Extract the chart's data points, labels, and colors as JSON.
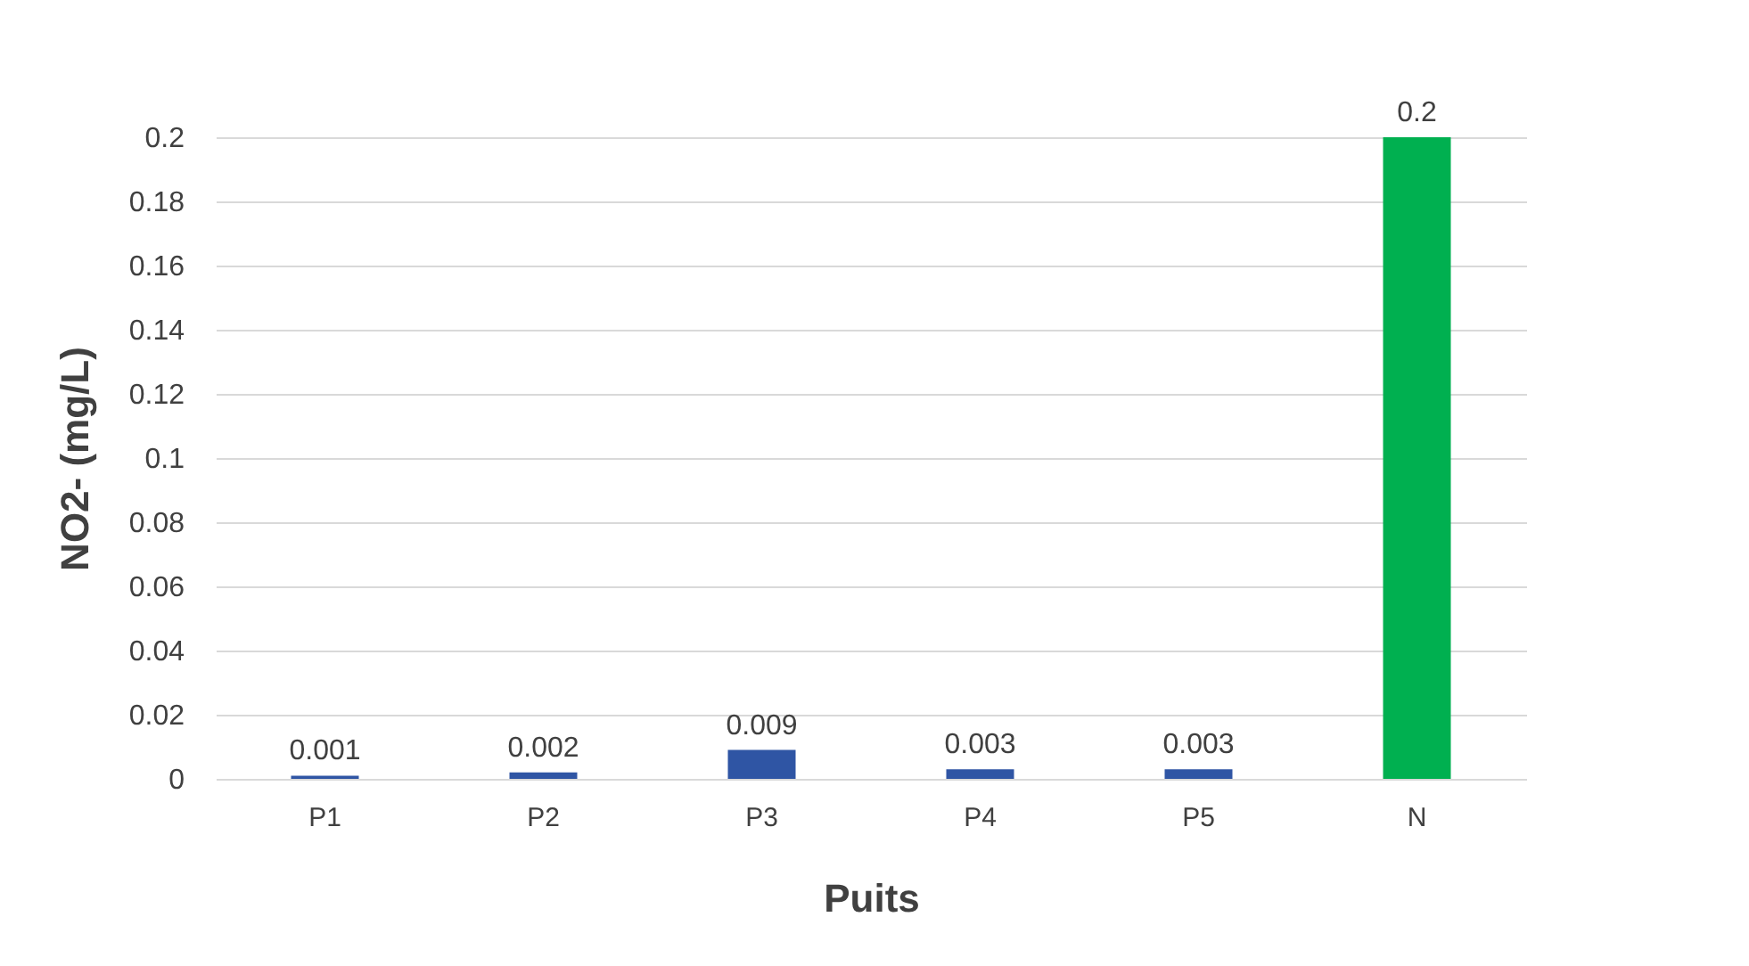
{
  "chart_data": {
    "type": "bar",
    "xlabel": "Puits",
    "ylabel": "NO2- (mg/L)",
    "categories": [
      "P1",
      "P2",
      "P3",
      "P4",
      "P5",
      "N"
    ],
    "values": [
      0.001,
      0.002,
      0.009,
      0.003,
      0.003,
      0.2
    ],
    "colors": [
      "#2f55a4",
      "#2f55a4",
      "#2f55a4",
      "#2f55a4",
      "#2f55a4",
      "#00b050"
    ],
    "ylim": [
      0,
      0.2
    ],
    "yticks": [
      0,
      0.02,
      0.04,
      0.06,
      0.08,
      0.1,
      0.12,
      0.14,
      0.16,
      0.18,
      0.2
    ],
    "grid": "y",
    "data_labels": true
  }
}
